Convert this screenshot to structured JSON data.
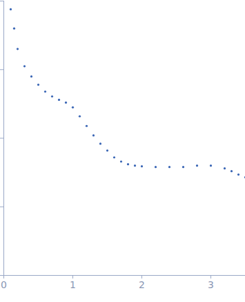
{
  "chart_data": {
    "type": "scatter",
    "x": [
      0.1,
      0.15,
      0.2,
      0.3,
      0.4,
      0.5,
      0.6,
      0.7,
      0.8,
      0.9,
      1.0,
      1.1,
      1.2,
      1.3,
      1.4,
      1.5,
      1.6,
      1.7,
      1.8,
      1.9,
      2.0,
      2.2,
      2.4,
      2.6,
      2.8,
      3.0,
      3.2,
      3.3,
      3.4,
      3.5
    ],
    "values": [
      0.759,
      0.398,
      0.2,
      0.112,
      0.0794,
      0.0603,
      0.0479,
      0.0407,
      0.0363,
      0.0331,
      0.0282,
      0.0209,
      0.0151,
      0.011,
      0.00832,
      0.00661,
      0.00525,
      0.00457,
      0.00417,
      0.00398,
      0.00389,
      0.0038,
      0.0038,
      0.0038,
      0.00398,
      0.00398,
      0.00363,
      0.00331,
      0.00295,
      0.00269
    ],
    "color": "#3a66b5",
    "marker": "circle",
    "log": "y",
    "xlim": [
      0,
      3.5
    ],
    "xticks": [
      0,
      1,
      2,
      3
    ],
    "ylim": [
      0.0001,
      1
    ],
    "yticks": [
      0.0001,
      0.001,
      0.01,
      0.1,
      1
    ],
    "tick_labels": "x"
  }
}
